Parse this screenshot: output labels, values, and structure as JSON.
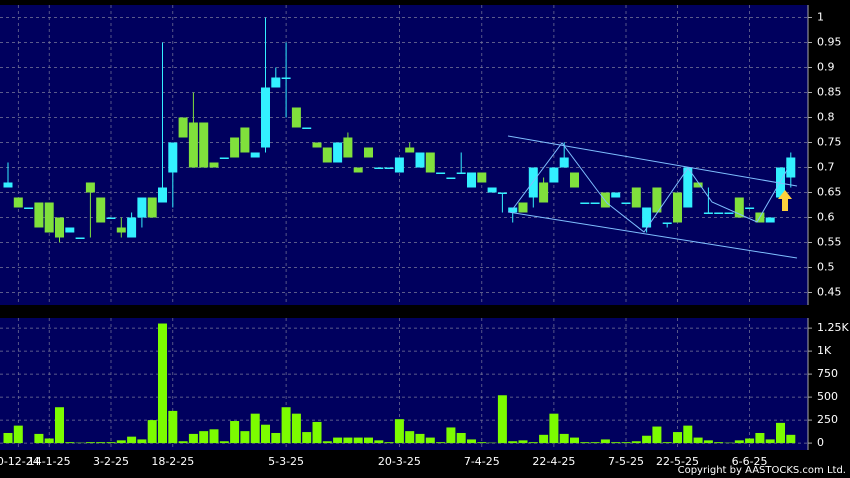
{
  "chart_data": [
    {
      "type": "candlestick",
      "categories": [
        null,
        "0-12-24",
        null,
        null,
        "14-1-25",
        null,
        null,
        null,
        null,
        null,
        "3-2-25",
        null,
        null,
        null,
        null,
        null,
        "18-2-25",
        null,
        null,
        null,
        null,
        null,
        null,
        null,
        null,
        null,
        null,
        "5-3-25",
        null,
        null,
        null,
        null,
        null,
        null,
        null,
        null,
        null,
        null,
        "20-3-25",
        null,
        null,
        null,
        null,
        null,
        null,
        null,
        "7-4-25",
        null,
        null,
        null,
        null,
        null,
        null,
        "22-4-25",
        null,
        null,
        null,
        null,
        null,
        null,
        "7-5-25",
        null,
        null,
        null,
        null,
        "22-5-25",
        null,
        null,
        null,
        null,
        null,
        null,
        "6-6-25",
        null,
        null,
        null,
        null
      ],
      "open": [
        0.66,
        0.64,
        0.62,
        0.63,
        0.63,
        0.6,
        0.57,
        0.56,
        0.67,
        0.64,
        0.6,
        0.58,
        0.56,
        0.6,
        0.64,
        0.63,
        0.69,
        0.8,
        0.79,
        0.79,
        0.71,
        0.72,
        0.76,
        0.78,
        0.72,
        0.74,
        0.86,
        0.88,
        0.82,
        0.78,
        0.75,
        0.74,
        0.71,
        0.76,
        0.7,
        0.74,
        0.7,
        0.7,
        0.69,
        0.74,
        0.7,
        0.73,
        0.69,
        0.68,
        0.69,
        0.66,
        0.69,
        0.65,
        0.65,
        0.61,
        0.63,
        0.64,
        0.67,
        0.67,
        0.7,
        0.69,
        0.63,
        0.63,
        0.65,
        0.64,
        0.63,
        0.66,
        0.58,
        0.66,
        0.59,
        0.65,
        0.62,
        0.67,
        0.61,
        0.61,
        0.61,
        0.64,
        0.62,
        0.61,
        0.59,
        0.64,
        0.68
      ],
      "high": [
        0.71,
        0.64,
        0.62,
        0.63,
        0.63,
        0.6,
        0.58,
        0.56,
        0.67,
        0.64,
        0.6,
        0.6,
        0.61,
        0.64,
        0.64,
        0.95,
        0.75,
        0.8,
        0.85,
        0.79,
        0.71,
        0.72,
        0.76,
        0.78,
        0.73,
        1.0,
        0.9,
        0.95,
        0.82,
        0.78,
        0.75,
        0.74,
        0.75,
        0.77,
        0.7,
        0.74,
        0.7,
        0.7,
        0.72,
        0.75,
        0.73,
        0.73,
        0.69,
        0.68,
        0.73,
        0.69,
        0.69,
        0.66,
        0.65,
        0.62,
        0.63,
        0.7,
        0.68,
        0.7,
        0.75,
        0.69,
        0.63,
        0.63,
        0.65,
        0.65,
        0.63,
        0.66,
        0.62,
        0.66,
        0.59,
        0.65,
        0.7,
        0.67,
        0.66,
        0.61,
        0.61,
        0.64,
        0.62,
        0.61,
        0.6,
        0.7,
        0.73
      ],
      "low": [
        0.66,
        0.62,
        0.62,
        0.58,
        0.57,
        0.55,
        0.57,
        0.56,
        0.56,
        0.59,
        0.6,
        0.56,
        0.56,
        0.58,
        0.6,
        0.63,
        0.62,
        0.76,
        0.7,
        0.7,
        0.7,
        0.72,
        0.72,
        0.73,
        0.72,
        0.73,
        0.86,
        0.8,
        0.78,
        0.78,
        0.74,
        0.71,
        0.71,
        0.72,
        0.69,
        0.72,
        0.7,
        0.7,
        0.69,
        0.73,
        0.7,
        0.69,
        0.69,
        0.68,
        0.69,
        0.66,
        0.67,
        0.65,
        0.61,
        0.59,
        0.61,
        0.62,
        0.63,
        0.67,
        0.7,
        0.66,
        0.63,
        0.63,
        0.62,
        0.64,
        0.63,
        0.62,
        0.57,
        0.61,
        0.58,
        0.59,
        0.62,
        0.66,
        0.61,
        0.61,
        0.61,
        0.6,
        0.62,
        0.59,
        0.59,
        0.64,
        0.66
      ],
      "close": [
        0.67,
        0.62,
        0.62,
        0.58,
        0.57,
        0.56,
        0.58,
        0.56,
        0.65,
        0.59,
        0.6,
        0.57,
        0.6,
        0.64,
        0.6,
        0.66,
        0.75,
        0.76,
        0.7,
        0.7,
        0.7,
        0.72,
        0.72,
        0.73,
        0.73,
        0.86,
        0.88,
        0.88,
        0.78,
        0.78,
        0.74,
        0.71,
        0.75,
        0.72,
        0.69,
        0.72,
        0.7,
        0.7,
        0.72,
        0.73,
        0.73,
        0.69,
        0.69,
        0.68,
        0.69,
        0.69,
        0.67,
        0.66,
        0.65,
        0.62,
        0.61,
        0.7,
        0.63,
        0.7,
        0.72,
        0.66,
        0.63,
        0.63,
        0.62,
        0.65,
        0.63,
        0.62,
        0.62,
        0.61,
        0.59,
        0.59,
        0.7,
        0.66,
        0.61,
        0.61,
        0.61,
        0.6,
        0.62,
        0.59,
        0.6,
        0.7,
        0.72
      ],
      "up_color": "#33f0ff",
      "down_color": "#80e03c",
      "ylim": [
        0.425,
        1.025
      ],
      "yticks": [
        0.45,
        0.5,
        0.55,
        0.6,
        0.65,
        0.7,
        0.75,
        0.8,
        0.85,
        0.9,
        0.95,
        1
      ],
      "grid": true
    },
    {
      "type": "bar",
      "values": [
        110,
        190,
        0,
        100,
        50,
        390,
        10,
        5,
        10,
        10,
        10,
        30,
        70,
        40,
        250,
        1300,
        350,
        20,
        100,
        130,
        150,
        20,
        240,
        130,
        320,
        200,
        110,
        390,
        320,
        120,
        230,
        20,
        60,
        60,
        60,
        60,
        30,
        10,
        260,
        130,
        100,
        60,
        10,
        170,
        110,
        40,
        10,
        5,
        520,
        20,
        30,
        10,
        90,
        320,
        100,
        60,
        10,
        10,
        40,
        10,
        10,
        20,
        80,
        180,
        10,
        120,
        190,
        60,
        30,
        10,
        5,
        30,
        50,
        110,
        40,
        220,
        90
      ],
      "color": "#7cfc00",
      "ylim": [
        -75,
        1360
      ],
      "yticks": [
        0,
        250,
        500,
        750,
        {
          "value": 1000,
          "label": "1K"
        },
        {
          "value": 1250,
          "label": "1.25K"
        }
      ],
      "grid": true,
      "credit": "Copyright by AASTOCKS.com Ltd."
    }
  ]
}
